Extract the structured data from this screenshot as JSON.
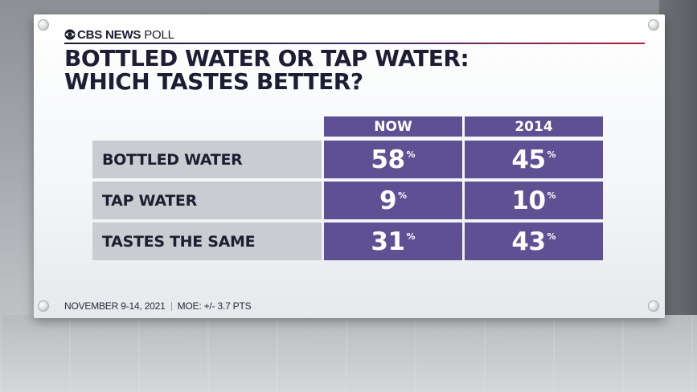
{
  "header": {
    "network": "CBS NEWS",
    "poll": "POLL",
    "title_line1": "BOTTLED WATER OR TAP WATER:",
    "title_line2": "WHICH TASTES BETTER?"
  },
  "chart_data": {
    "type": "table",
    "title": "BOTTLED WATER OR TAP WATER: WHICH TASTES BETTER?",
    "columns": [
      "NOW",
      "2014"
    ],
    "rows": [
      {
        "label": "BOTTLED WATER",
        "values": [
          58,
          45
        ]
      },
      {
        "label": "TAP WATER",
        "values": [
          9,
          10
        ]
      },
      {
        "label": "TASTES THE SAME",
        "values": [
          31,
          43
        ]
      }
    ],
    "unit": "%"
  },
  "footer": {
    "dates": "NOVEMBER 9-14, 2021",
    "moe": "MOE: +/- 3.7 PTS"
  },
  "colors": {
    "cell": "#5f4f93",
    "label_bg": "#c9cdd2",
    "title": "#1e1d33"
  }
}
